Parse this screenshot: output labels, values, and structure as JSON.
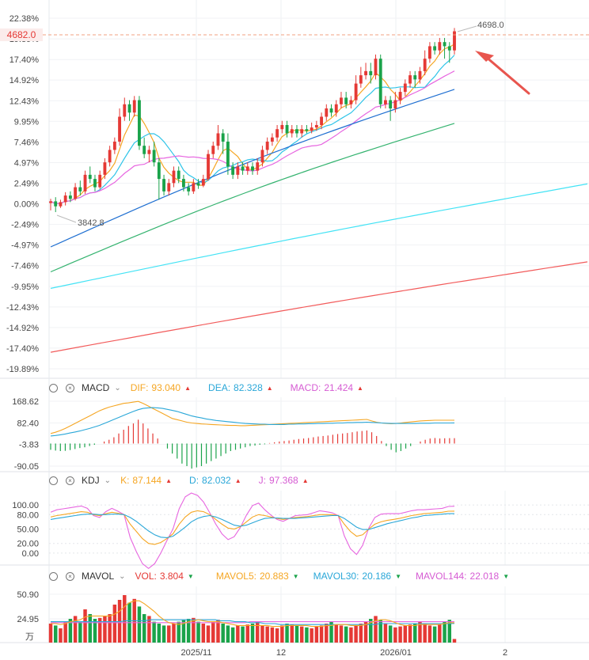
{
  "main": {
    "y_ticks": [
      "22.38%",
      "19.89%",
      "17.40%",
      "14.92%",
      "12.43%",
      "9.95%",
      "7.46%",
      "4.97%",
      "2.49%",
      "0.00%",
      "-2.49%",
      "-4.97%",
      "-7.46%",
      "-9.95%",
      "-12.43%",
      "-14.92%",
      "-17.40%",
      "-19.89%"
    ],
    "x_labels": [
      "2025/11",
      "12",
      "2026/01",
      "2"
    ],
    "current_price_label": "4682.0",
    "high_label": "4698.0",
    "low_label": "3842.8",
    "up_color": "#e53935",
    "down_color": "#1aa34a"
  },
  "macd": {
    "name": "MACD",
    "dif_label": "DIF:",
    "dif_value": "93.040",
    "dea_label": "DEA:",
    "dea_value": "82.328",
    "macd_label": "MACD:",
    "macd_value": "21.424",
    "y_ticks": [
      "168.62",
      "82.40",
      "-3.83",
      "-90.05"
    ]
  },
  "kdj": {
    "name": "KDJ",
    "k_label": "K:",
    "k_value": "87.144",
    "d_label": "D:",
    "d_value": "82.032",
    "j_label": "J:",
    "j_value": "97.368",
    "y_ticks": [
      "100.00",
      "80.00",
      "50.00",
      "20.00",
      "0.00"
    ]
  },
  "mavol": {
    "name": "MAVOL",
    "vol_label": "VOL:",
    "vol_value": "3.804",
    "ma5_label": "MAVOL5:",
    "ma5_value": "20.883",
    "ma30_label": "MAVOL30:",
    "ma30_value": "20.186",
    "ma144_label": "MAVOL144:",
    "ma144_value": "22.018",
    "y_ticks": [
      "50.90",
      "24.95"
    ],
    "unit": "万"
  },
  "chart_data": {
    "type": "candlestick",
    "title": "",
    "x_axis_labels": [
      "2025/11",
      "12",
      "2026/01",
      "2"
    ],
    "y_axis": "percent change",
    "ylim": [
      -19.89,
      22.38
    ],
    "candles": [
      [
        0.1,
        0.3,
        -0.8,
        0.6
      ],
      [
        0.3,
        -0.3,
        -1.0,
        0.8
      ],
      [
        -0.3,
        0.2,
        -0.5,
        0.5
      ],
      [
        0.2,
        1.0,
        -0.2,
        1.4
      ],
      [
        1.0,
        0.6,
        0.2,
        1.5
      ],
      [
        0.6,
        2.0,
        0.4,
        2.5
      ],
      [
        2.0,
        1.5,
        1.0,
        2.8
      ],
      [
        1.5,
        3.5,
        1.2,
        4.0
      ],
      [
        3.5,
        3.0,
        2.5,
        4.5
      ],
      [
        3.0,
        2.0,
        1.5,
        3.5
      ],
      [
        2.0,
        3.5,
        1.8,
        4.0
      ],
      [
        3.5,
        5.0,
        3.0,
        5.5
      ],
      [
        5.0,
        6.5,
        4.5,
        7.0
      ],
      [
        6.5,
        7.5,
        6.0,
        8.0
      ],
      [
        7.5,
        10.5,
        7.0,
        11.5
      ],
      [
        10.5,
        12.0,
        10.0,
        12.8
      ],
      [
        12.0,
        11.0,
        10.0,
        12.5
      ],
      [
        11.0,
        12.5,
        10.5,
        13.0
      ],
      [
        12.5,
        7.0,
        6.5,
        13.0
      ],
      [
        7.0,
        6.0,
        5.5,
        8.0
      ],
      [
        6.0,
        6.5,
        5.0,
        7.0
      ],
      [
        6.5,
        5.0,
        4.5,
        7.5
      ],
      [
        5.0,
        3.0,
        0.5,
        5.5
      ],
      [
        3.0,
        1.5,
        1.0,
        3.5
      ],
      [
        1.5,
        2.5,
        1.0,
        3.0
      ],
      [
        2.5,
        4.0,
        2.0,
        4.5
      ],
      [
        4.0,
        3.0,
        2.5,
        4.5
      ],
      [
        3.0,
        2.0,
        1.5,
        3.5
      ],
      [
        2.0,
        1.5,
        1.0,
        2.5
      ],
      [
        1.5,
        2.5,
        1.2,
        3.0
      ],
      [
        2.5,
        2.2,
        1.8,
        3.0
      ],
      [
        2.2,
        3.0,
        2.0,
        3.5
      ],
      [
        3.0,
        6.0,
        2.8,
        6.5
      ],
      [
        6.0,
        7.0,
        5.5,
        7.5
      ],
      [
        7.0,
        8.5,
        6.5,
        9.5
      ],
      [
        8.5,
        7.5,
        6.0,
        9.0
      ],
      [
        7.5,
        4.5,
        3.5,
        8.5
      ],
      [
        4.5,
        3.5,
        3.0,
        5.0
      ],
      [
        3.5,
        4.5,
        3.0,
        5.0
      ],
      [
        4.5,
        4.0,
        3.5,
        5.0
      ],
      [
        4.0,
        4.5,
        3.5,
        5.0
      ],
      [
        4.5,
        4.0,
        3.5,
        5.0
      ],
      [
        4.0,
        5.0,
        3.5,
        5.5
      ],
      [
        5.0,
        6.5,
        4.5,
        7.0
      ],
      [
        6.5,
        7.5,
        6.0,
        8.0
      ],
      [
        7.5,
        8.0,
        7.0,
        8.5
      ],
      [
        8.0,
        9.0,
        7.5,
        9.5
      ],
      [
        9.0,
        9.5,
        8.5,
        10.0
      ],
      [
        9.5,
        8.5,
        8.0,
        10.0
      ],
      [
        8.5,
        9.0,
        8.0,
        9.5
      ],
      [
        9.0,
        8.5,
        8.0,
        9.5
      ],
      [
        8.5,
        9.0,
        8.0,
        9.5
      ],
      [
        9.0,
        8.8,
        8.5,
        9.5
      ],
      [
        8.8,
        9.2,
        8.5,
        9.8
      ],
      [
        9.2,
        9.5,
        8.8,
        10.0
      ],
      [
        9.5,
        10.5,
        9.0,
        11.0
      ],
      [
        10.5,
        11.5,
        10.0,
        12.0
      ],
      [
        11.5,
        11.0,
        10.5,
        12.0
      ],
      [
        11.0,
        12.0,
        10.5,
        12.5
      ],
      [
        12.0,
        12.8,
        11.5,
        13.5
      ],
      [
        12.8,
        12.0,
        11.5,
        13.5
      ],
      [
        12.0,
        12.5,
        11.5,
        13.0
      ],
      [
        12.5,
        14.5,
        12.0,
        15.5
      ],
      [
        14.5,
        15.5,
        14.0,
        16.5
      ],
      [
        15.5,
        16.0,
        15.0,
        17.0
      ],
      [
        16.0,
        15.5,
        14.5,
        17.0
      ],
      [
        15.5,
        17.5,
        15.0,
        18.0
      ],
      [
        17.5,
        12.0,
        11.5,
        18.0
      ],
      [
        12.0,
        12.5,
        11.5,
        13.0
      ],
      [
        12.5,
        11.5,
        10.0,
        13.0
      ],
      [
        11.5,
        12.5,
        11.0,
        13.5
      ],
      [
        12.5,
        13.5,
        12.0,
        14.0
      ],
      [
        13.5,
        14.5,
        13.0,
        15.0
      ],
      [
        14.5,
        15.5,
        14.0,
        16.0
      ],
      [
        15.5,
        15.0,
        14.0,
        16.0
      ],
      [
        15.0,
        16.0,
        14.5,
        16.5
      ],
      [
        16.0,
        17.5,
        15.5,
        18.5
      ],
      [
        17.5,
        19.0,
        17.0,
        19.5
      ],
      [
        19.0,
        18.5,
        18.0,
        19.5
      ],
      [
        18.5,
        19.5,
        18.0,
        20.0
      ],
      [
        19.5,
        19.0,
        17.5,
        20.0
      ],
      [
        19.0,
        18.5,
        17.0,
        19.5
      ],
      [
        18.5,
        20.8,
        18.0,
        21.2
      ]
    ],
    "ma_lines": {
      "ma5": {
        "color": "#f5a623",
        "start": -0.8,
        "end": 19.2
      },
      "ma10": {
        "color": "#2ec4e8",
        "start": -1.5,
        "end": 17.4
      },
      "ma20": {
        "color": "#e766e0",
        "start": -3.2,
        "end": 15.2
      },
      "ma30": {
        "color": "#1f6fd1",
        "start": -5.2,
        "end": 13.8
      },
      "ma60": {
        "color": "#34b36f",
        "start": -8.2,
        "end": 9.7
      },
      "ma120": {
        "color": "#43e3f5",
        "start": -10.2,
        "end": 2.4
      },
      "ma250": {
        "color": "#f25b5b",
        "start": -17.9,
        "end": -7.0
      }
    },
    "macd_ylim": [
      -90.05,
      168.62
    ],
    "macd_hist": [
      -25,
      -28,
      -30,
      -29,
      -26,
      -22,
      -18,
      -15,
      -10,
      -5,
      0,
      8,
      15,
      25,
      40,
      55,
      70,
      80,
      95,
      80,
      60,
      40,
      20,
      0,
      -20,
      -40,
      -60,
      -80,
      -90,
      -100,
      -95,
      -90,
      -80,
      -70,
      -60,
      -50,
      -40,
      -30,
      -25,
      -20,
      -15,
      -10,
      -8,
      -5,
      -3,
      2,
      5,
      8,
      10,
      12,
      15,
      18,
      20,
      22,
      25,
      28,
      30,
      32,
      35,
      38,
      40,
      42,
      45,
      48,
      50,
      52,
      45,
      30,
      10,
      -10,
      -25,
      -35,
      -30,
      -20,
      -10,
      0,
      8,
      15,
      20,
      22,
      20,
      21,
      21.4,
      21.4
    ],
    "macd_dif": [
      40,
      45,
      52,
      60,
      70,
      80,
      90,
      100,
      110,
      120,
      130,
      138,
      145,
      150,
      155,
      160,
      162,
      165,
      168,
      160,
      150,
      140,
      130,
      120,
      110,
      100,
      95,
      90,
      85,
      82,
      80,
      78,
      77,
      76,
      75,
      74,
      73,
      72,
      72,
      71,
      71,
      72,
      73,
      74,
      75,
      76,
      77,
      78,
      79,
      80,
      81,
      82,
      83,
      84,
      85,
      86,
      87,
      88,
      89,
      90,
      91,
      92,
      93,
      94,
      95,
      96,
      90,
      85,
      82,
      80,
      79,
      80,
      82,
      84,
      86,
      88,
      90,
      91,
      92,
      93,
      93,
      93,
      93,
      93.04
    ],
    "macd_dea": [
      30,
      32,
      35,
      38,
      42,
      46,
      50,
      55,
      60,
      66,
      72,
      80,
      88,
      96,
      104,
      112,
      120,
      128,
      135,
      140,
      142,
      143,
      142,
      140,
      136,
      132,
      128,
      122,
      116,
      110,
      106,
      102,
      98,
      95,
      92,
      90,
      88,
      86,
      84,
      82,
      80,
      79,
      78,
      77,
      77,
      76,
      76,
      76,
      76,
      77,
      77,
      78,
      78,
      79,
      79,
      80,
      80,
      81,
      81,
      82,
      82,
      83,
      83,
      84,
      84,
      85,
      84,
      83,
      82,
      81,
      80,
      80,
      80,
      80,
      80,
      80,
      81,
      81,
      81,
      82,
      82,
      82,
      82,
      82.328
    ],
    "kdj_ylim": [
      -20,
      120
    ],
    "kdj_k": [
      75,
      78,
      80,
      82,
      84,
      86,
      85,
      80,
      78,
      82,
      85,
      83,
      80,
      60,
      45,
      30,
      20,
      18,
      22,
      30,
      40,
      60,
      75,
      85,
      88,
      86,
      80,
      70,
      60,
      52,
      50,
      55,
      65,
      75,
      80,
      78,
      75,
      72,
      70,
      72,
      74,
      75,
      76,
      78,
      80,
      80,
      80,
      78,
      60,
      45,
      35,
      38,
      50,
      60,
      65,
      68,
      70,
      72,
      75,
      78,
      80,
      82,
      83,
      84,
      85,
      87,
      87.144
    ],
    "kdj_d": [
      70,
      72,
      74,
      76,
      78,
      80,
      81,
      81,
      80,
      80,
      81,
      81,
      80,
      74,
      66,
      56,
      46,
      38,
      33,
      32,
      35,
      44,
      54,
      65,
      72,
      76,
      78,
      75,
      70,
      64,
      58,
      56,
      58,
      63,
      68,
      72,
      73,
      73,
      72,
      72,
      72,
      73,
      74,
      75,
      76,
      77,
      78,
      78,
      72,
      63,
      54,
      49,
      49,
      53,
      57,
      61,
      64,
      67,
      70,
      73,
      75,
      78,
      79,
      80,
      81,
      82,
      82.032
    ],
    "kdj_j": [
      85,
      90,
      92,
      94,
      96,
      98,
      93,
      78,
      74,
      86,
      93,
      87,
      80,
      32,
      3,
      -22,
      -32,
      -22,
      0,
      26,
      50,
      92,
      117,
      125,
      120,
      106,
      84,
      60,
      40,
      28,
      34,
      53,
      79,
      99,
      104,
      90,
      79,
      70,
      66,
      72,
      78,
      79,
      80,
      84,
      88,
      86,
      84,
      78,
      36,
      9,
      -3,
      16,
      52,
      74,
      81,
      82,
      82,
      82,
      85,
      88,
      90,
      90,
      91,
      92,
      93,
      97,
      97.368
    ],
    "vol_ylim": [
      0,
      55
    ],
    "vol": [
      20,
      18,
      15,
      22,
      25,
      28,
      22,
      35,
      30,
      25,
      26,
      28,
      30,
      40,
      45,
      50,
      42,
      46,
      38,
      30,
      28,
      22,
      20,
      18,
      18,
      20,
      22,
      24,
      25,
      26,
      22,
      20,
      18,
      22,
      24,
      20,
      18,
      16,
      18,
      17,
      19,
      20,
      22,
      18,
      17,
      16,
      15,
      18,
      20,
      19,
      18,
      17,
      16,
      15,
      17,
      18,
      20,
      22,
      19,
      18,
      17,
      16,
      18,
      20,
      22,
      25,
      28,
      24,
      20,
      18,
      16,
      17,
      18,
      19,
      20,
      22,
      20,
      18,
      17,
      19,
      22,
      24,
      3.804
    ],
    "vol_ma5": [
      20,
      20,
      19,
      20,
      22,
      23,
      24,
      27,
      28,
      28,
      28,
      28,
      28,
      30,
      33,
      38,
      42,
      44,
      44,
      41,
      37,
      33,
      28,
      24,
      21,
      20,
      19,
      20,
      22,
      23,
      24,
      23,
      22,
      22,
      22,
      21,
      20,
      19,
      18,
      18,
      18,
      18,
      18,
      18,
      18,
      17,
      17,
      17,
      18,
      18,
      18,
      18,
      18,
      17,
      17,
      17,
      18,
      18,
      19,
      19,
      19,
      18,
      18,
      18,
      19,
      21,
      23,
      24,
      24,
      23,
      21,
      19,
      18,
      18,
      18,
      19,
      19,
      19,
      19,
      19,
      20,
      21,
      20.883
    ],
    "vol_ma30": [
      22,
      22,
      22,
      22,
      22,
      22,
      22,
      22,
      22,
      22,
      22,
      22,
      22,
      22,
      22,
      23,
      23,
      23,
      23,
      23,
      24,
      24,
      24,
      24,
      24,
      24,
      24,
      24,
      24,
      24,
      24,
      24,
      24,
      24,
      23,
      23,
      23,
      22,
      22,
      22,
      21,
      21,
      21,
      20,
      20,
      20,
      19,
      19,
      19,
      19,
      19,
      19,
      19,
      19,
      19,
      19,
      19,
      19,
      19,
      19,
      19,
      19,
      19,
      19,
      19,
      19,
      20,
      20,
      20,
      20,
      20,
      20,
      20,
      20,
      20,
      20,
      20,
      20,
      20,
      20,
      20,
      20.186
    ],
    "vol_ma144": [
      21,
      21,
      21,
      21,
      21,
      21,
      21,
      21,
      21,
      21,
      21,
      21,
      21,
      21,
      21,
      21,
      21,
      21,
      21,
      21,
      21,
      21,
      21,
      21,
      21,
      21,
      21,
      21,
      21,
      21,
      21,
      21,
      21,
      21,
      21,
      21,
      21,
      21,
      21,
      21,
      22,
      22,
      22,
      22,
      22,
      22,
      22,
      22,
      22,
      22,
      22,
      22,
      22,
      22,
      22,
      22,
      22,
      22,
      22,
      22,
      22,
      22,
      22,
      22,
      22,
      22,
      22,
      22,
      22,
      22,
      22,
      22,
      22,
      22,
      22,
      22,
      22,
      22,
      22,
      22,
      22,
      22.018
    ]
  }
}
